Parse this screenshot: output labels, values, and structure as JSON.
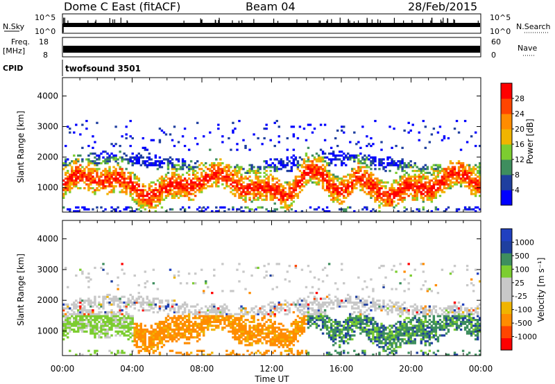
{
  "header": {
    "station": "Dome C East (fitACF)",
    "beam": "Beam 04",
    "date": "28/Feb/2015"
  },
  "summary_panels": {
    "nsky_label": "N.Sky",
    "nsearch_label": "N.Search",
    "nsky_ticks": [
      "10^5",
      "10^0"
    ],
    "nsearch_ticks": [
      "10^5",
      "10^0"
    ],
    "freq_label": "Freq.",
    "freq_unit": "[MHz]",
    "freq_ticks": [
      "18",
      "8"
    ],
    "nave_label": "Nave",
    "nave_ticks": [
      "60",
      "0"
    ],
    "cpid_label": "CPID",
    "cpid_value": "twofsound 3501"
  },
  "colors": {
    "power_scale": [
      "#0000ff",
      "#1f3f9f",
      "#3e8e5e",
      "#7ccd30",
      "#f0b400",
      "#ff8c00",
      "#ff4500",
      "#ff0000"
    ],
    "velocity_scale": [
      "#ff0000",
      "#ff4500",
      "#ff8c00",
      "#f0b400",
      "#c8c8c8",
      "#c8c8c8",
      "#7ccd30",
      "#3e8e5e",
      "#1f3f9f",
      "#2040c0"
    ]
  },
  "chart_data": [
    {
      "type": "heatmap",
      "name": "power-panel",
      "ylabel": "Slant Range [km]",
      "xlabel": "",
      "yticks": [
        1000,
        2000,
        3000,
        4000
      ],
      "ylim": [
        200,
        4600
      ],
      "xlim": [
        0,
        24
      ],
      "colorbar_label": "Power [dB]",
      "colorbar_ticks": [
        "28",
        "24",
        "20",
        "16",
        "12",
        "8",
        "4"
      ]
    },
    {
      "type": "heatmap",
      "name": "velocity-panel",
      "ylabel": "Slant Range [km]",
      "xlabel": "Time UT",
      "x_ticks": [
        "00:00",
        "04:00",
        "08:00",
        "12:00",
        "16:00",
        "20:00",
        "00:00"
      ],
      "yticks": [
        1000,
        2000,
        3000,
        4000
      ],
      "ylim": [
        200,
        4600
      ],
      "xlim": [
        0,
        24
      ],
      "colorbar_label": "Velocity [m s⁻¹]",
      "colorbar_ticks": [
        "1000",
        "500",
        "100",
        "25",
        "-25",
        "-100",
        "-500",
        "-1000"
      ]
    }
  ]
}
